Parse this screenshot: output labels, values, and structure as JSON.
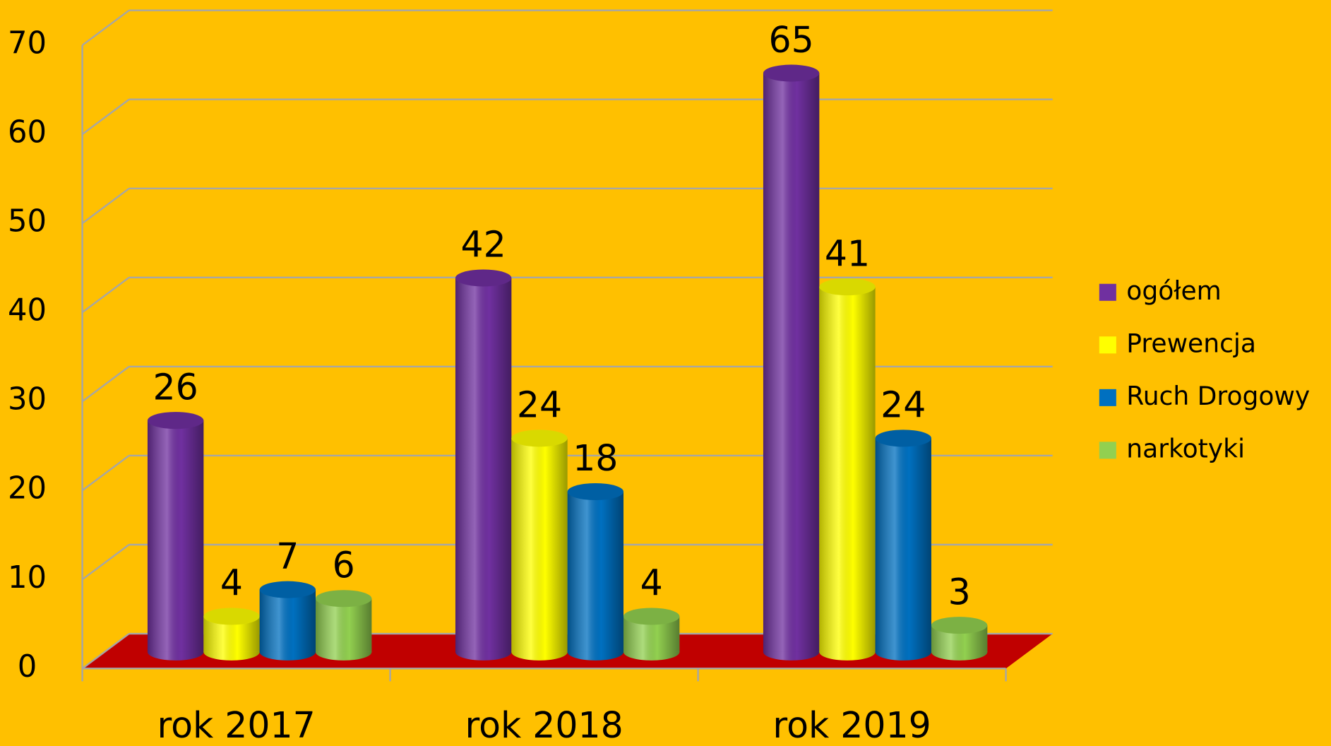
{
  "chart_data": {
    "type": "bar3d",
    "categories": [
      "rok 2017",
      "rok 2018",
      "rok 2019"
    ],
    "series": [
      {
        "name": "ogółem",
        "color": "#7030a0",
        "values": [
          26,
          42,
          65
        ]
      },
      {
        "name": "Prewencja",
        "color": "#ffff00",
        "values": [
          4,
          24,
          41
        ]
      },
      {
        "name": "Ruch Drogowy",
        "color": "#0070c0",
        "values": [
          7,
          18,
          24
        ]
      },
      {
        "name": "narkotyki",
        "color": "#92d050",
        "values": [
          6,
          4,
          3
        ]
      }
    ],
    "ylim": [
      0,
      70
    ],
    "yticks": [
      0,
      10,
      20,
      30,
      40,
      50,
      60,
      70
    ],
    "grid": true,
    "legend": "right",
    "floor_color": "#c00000",
    "background": "#ffc000"
  }
}
